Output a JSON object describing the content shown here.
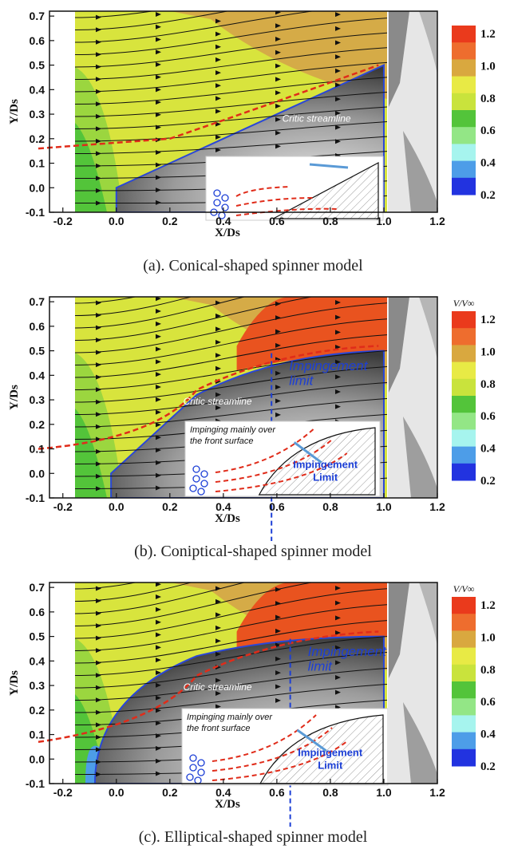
{
  "chart_data": [
    {
      "type": "contour",
      "caption": "(a). Conical-shaped spinner model",
      "xlabel": "X/Ds",
      "ylabel": "Y/Ds",
      "xlim": [
        -0.25,
        1.2
      ],
      "ylim": [
        -0.1,
        0.72
      ],
      "xticks": [
        "-0.2",
        "0.0",
        "0.2",
        "0.4",
        "0.6",
        "0.8",
        "1.0",
        "1.2"
      ],
      "yticks": [
        "-0.1",
        "0.0",
        "0.1",
        "0.2",
        "0.3",
        "0.4",
        "0.5",
        "0.6",
        "0.7"
      ],
      "colorbar": {
        "title": "",
        "ticks": [
          "1.2",
          "1.0",
          "0.8",
          "0.6",
          "0.4",
          "0.2"
        ]
      },
      "annotations": {
        "streamline": "Critic streamline"
      },
      "inset": {}
    },
    {
      "type": "contour",
      "caption": "(b). Coniptical-shaped spinner model",
      "xlabel": "X/Ds",
      "ylabel": "Y/Ds",
      "xlim": [
        -0.25,
        1.2
      ],
      "ylim": [
        -0.1,
        0.72
      ],
      "xticks": [
        "-0.2",
        "0.0",
        "0.2",
        "0.4",
        "0.6",
        "0.8",
        "1.0",
        "1.2"
      ],
      "yticks": [
        "-0.1",
        "0.0",
        "0.1",
        "0.2",
        "0.3",
        "0.4",
        "0.5",
        "0.6",
        "0.7"
      ],
      "colorbar": {
        "title": "V/V∞",
        "ticks": [
          "1.2",
          "1.0",
          "0.8",
          "0.6",
          "0.4",
          "0.2"
        ]
      },
      "annotations": {
        "streamline": "Critic streamline",
        "impingement_1": "Impingement",
        "impingement_2": "limit"
      },
      "impingement_limit_x": 0.58,
      "inset": {
        "line1": "Impinging mainly over",
        "line2": "the front surface",
        "limit1": "Impingement",
        "limit2": "Limit"
      }
    },
    {
      "type": "contour",
      "caption": "(c). Elliptical-shaped spinner model",
      "xlabel": "X/Ds",
      "ylabel": "Y/Ds",
      "xlim": [
        -0.25,
        1.2
      ],
      "ylim": [
        -0.1,
        0.72
      ],
      "xticks": [
        "-0.2",
        "0.0",
        "0.2",
        "0.4",
        "0.6",
        "0.8",
        "1.0",
        "1.2"
      ],
      "yticks": [
        "-0.1",
        "0.0",
        "0.1",
        "0.2",
        "0.3",
        "0.4",
        "0.5",
        "0.6",
        "0.7"
      ],
      "colorbar": {
        "title": "V/V∞",
        "ticks": [
          "1.2",
          "1.0",
          "0.8",
          "0.6",
          "0.4",
          "0.2"
        ]
      },
      "annotations": {
        "streamline": "Critic streamline",
        "impingement_1": "Impingement",
        "impingement_2": "limit"
      },
      "impingement_limit_x": 0.65,
      "inset": {
        "line1": "Impinging mainly over",
        "line2": "the front surface",
        "limit1": "Impingement",
        "limit2": "Limit"
      }
    }
  ],
  "colors": {
    "cb": [
      "#ea3a1c",
      "#ee6d2e",
      "#d9a83f",
      "#e8ea45",
      "#c9e33c",
      "#53c43a",
      "#93e686",
      "#a6f4ee",
      "#4d9de8",
      "#2233e0"
    ],
    "streamline": "#111111",
    "critic_streamline": "#e02c1a",
    "impingement": "#1c3fd6"
  }
}
